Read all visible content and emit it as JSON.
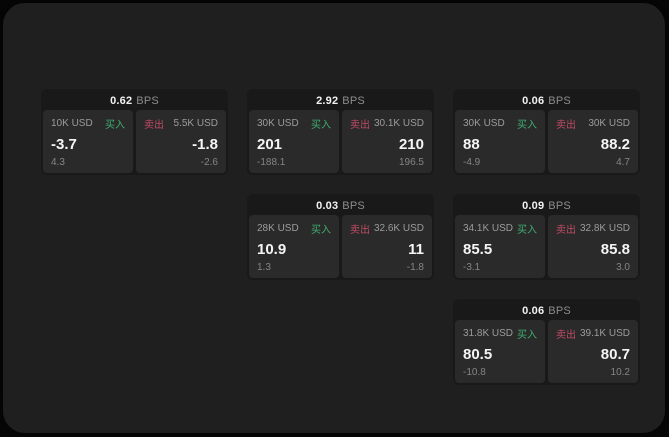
{
  "labels": {
    "bps": "BPS",
    "buy": "买入",
    "sell": "卖出"
  },
  "colors": {
    "buy_green": "#3fae6f",
    "sell_red": "#c04b63",
    "page_bg": "#1f1f1f",
    "card_bg": "#191919",
    "panel_bg": "#2a2a2b",
    "text_primary": "#f5f5f5",
    "text_muted": "#8d8d8d"
  },
  "cards": [
    {
      "bps": "0.62",
      "buy": {
        "notional": "10K USD",
        "price": "-3.7",
        "delta": "4.3"
      },
      "sell": {
        "notional": "5.5K USD",
        "price": "-1.8",
        "delta": "-2.6"
      }
    },
    {
      "bps": "2.92",
      "buy": {
        "notional": "30K USD",
        "price": "201",
        "delta": "-188.1"
      },
      "sell": {
        "notional": "30.1K USD",
        "price": "210",
        "delta": "196.5"
      }
    },
    {
      "bps": "0.06",
      "buy": {
        "notional": "30K USD",
        "price": "88",
        "delta": "-4.9"
      },
      "sell": {
        "notional": "30K USD",
        "price": "88.2",
        "delta": "4.7"
      }
    },
    {
      "bps": "0.03",
      "buy": {
        "notional": "28K USD",
        "price": "10.9",
        "delta": "1.3"
      },
      "sell": {
        "notional": "32.6K USD",
        "price": "11",
        "delta": "-1.8"
      }
    },
    {
      "bps": "0.09",
      "buy": {
        "notional": "34.1K USD",
        "price": "85.5",
        "delta": "-3.1"
      },
      "sell": {
        "notional": "32.8K USD",
        "price": "85.8",
        "delta": "3.0"
      }
    },
    {
      "bps": "0.06",
      "buy": {
        "notional": "31.8K USD",
        "price": "80.5",
        "delta": "-10.8"
      },
      "sell": {
        "notional": "39.1K USD",
        "price": "80.7",
        "delta": "10.2"
      }
    }
  ]
}
